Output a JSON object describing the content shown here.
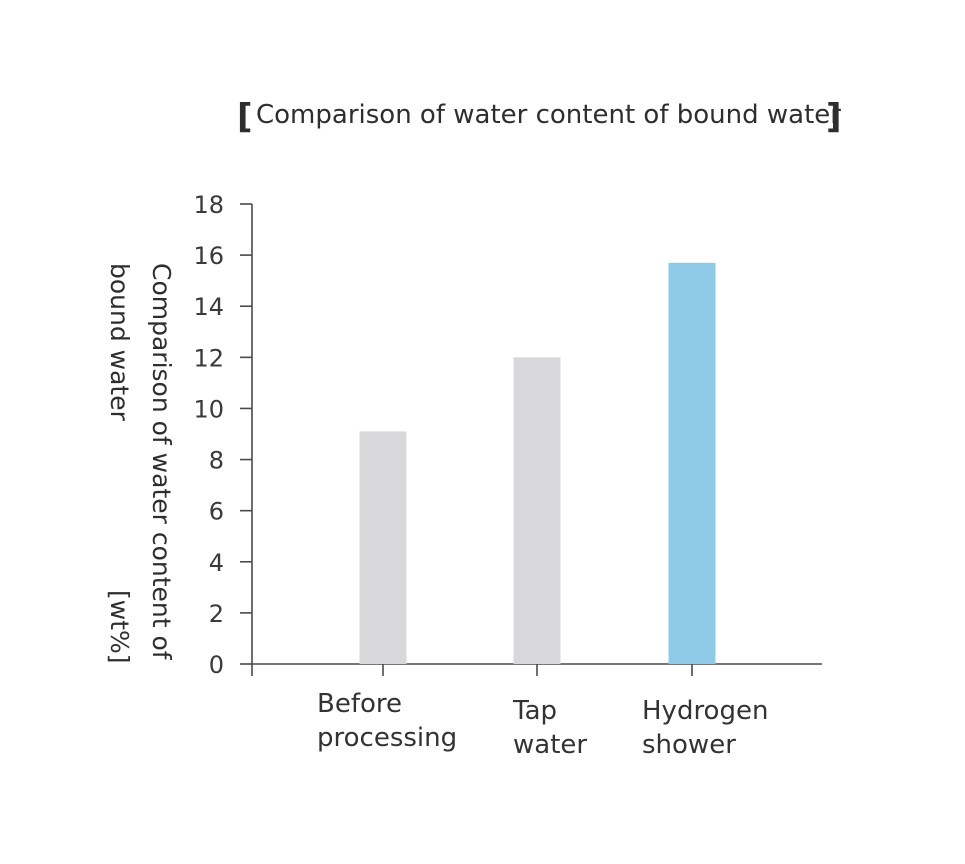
{
  "chart_data": {
    "type": "bar",
    "title": "Comparison of water content of bound water",
    "ylabel_lines": [
      "Comparison of water content of",
      "bound water",
      "[wt%]"
    ],
    "xlabel": "",
    "categories": [
      [
        "Before",
        "processing"
      ],
      [
        "Tap",
        "water"
      ],
      [
        "Hydrogen",
        "shower"
      ]
    ],
    "values": [
      9.1,
      12.0,
      15.7
    ],
    "bar_colors": [
      "#d8d7da",
      "#d8d7da",
      "#8fcbe8"
    ],
    "ylim": [
      0,
      18
    ],
    "yticks": [
      0,
      2,
      4,
      6,
      8,
      10,
      12,
      14,
      16,
      18
    ],
    "grid": false,
    "legend": "none"
  }
}
